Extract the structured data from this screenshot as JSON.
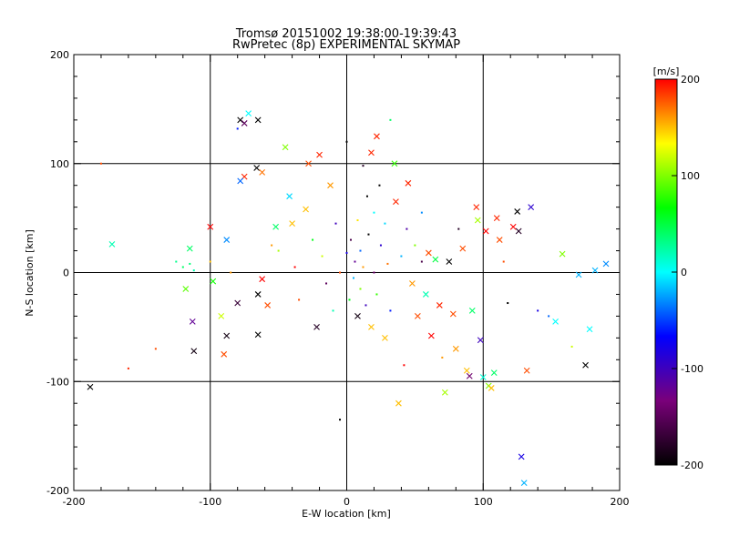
{
  "chart_data": {
    "type": "scatter",
    "title": "Tromsø 20151002 19:38:00-19:39:43",
    "subtitle": "RwPretec (8p) EXPERIMENTAL SKYMAP",
    "xlabel": "E-W location [km]",
    "ylabel": "N-S location [km]",
    "xlim": [
      -200,
      200
    ],
    "ylim": [
      -200,
      200
    ],
    "xticks": [
      "-200",
      "-100",
      "0",
      "100",
      "200"
    ],
    "yticks": [
      "-200",
      "-100",
      "0",
      "100",
      "200"
    ],
    "grid": true,
    "colorbar": {
      "label": "[m/s]",
      "range": [
        -200,
        200
      ],
      "ticks": [
        "-200",
        "-100",
        "0",
        "100",
        "200"
      ],
      "colormap": [
        "#000000",
        "#7a007a",
        "#0000ff",
        "#00ffff",
        "#00ff00",
        "#ffff00",
        "#ff0000"
      ],
      "placement": "right"
    },
    "marker_legend": {
      "small_dot": "small dots (dense cluster near origin)",
      "cross": "x markers"
    },
    "points": [
      {
        "x": -180,
        "y": 100,
        "v": 180,
        "m": "."
      },
      {
        "x": -172,
        "y": 26,
        "v": 20,
        "m": "x"
      },
      {
        "x": -188,
        "y": -105,
        "v": -200,
        "m": "x"
      },
      {
        "x": -160,
        "y": -88,
        "v": 190,
        "m": "."
      },
      {
        "x": -140,
        "y": -70,
        "v": 180,
        "m": "."
      },
      {
        "x": -125,
        "y": 10,
        "v": 30,
        "m": "."
      },
      {
        "x": -120,
        "y": 5,
        "v": 40,
        "m": "."
      },
      {
        "x": -115,
        "y": 8,
        "v": 35,
        "m": "."
      },
      {
        "x": -112,
        "y": 2,
        "v": 20,
        "m": "."
      },
      {
        "x": -118,
        "y": -15,
        "v": 90,
        "m": "x"
      },
      {
        "x": -113,
        "y": -45,
        "v": -120,
        "m": "x"
      },
      {
        "x": -112,
        "y": -72,
        "v": -190,
        "m": "x"
      },
      {
        "x": -115,
        "y": 22,
        "v": 40,
        "m": "x"
      },
      {
        "x": -100,
        "y": 42,
        "v": 200,
        "m": "x"
      },
      {
        "x": -100,
        "y": 10,
        "v": 150,
        "m": "."
      },
      {
        "x": -98,
        "y": -8,
        "v": 70,
        "m": "x"
      },
      {
        "x": -92,
        "y": -40,
        "v": 120,
        "m": "x"
      },
      {
        "x": -90,
        "y": -75,
        "v": 180,
        "m": "x"
      },
      {
        "x": -88,
        "y": -58,
        "v": -190,
        "m": "x"
      },
      {
        "x": -88,
        "y": 30,
        "v": -30,
        "m": "x"
      },
      {
        "x": -85,
        "y": 0,
        "v": 160,
        "m": "."
      },
      {
        "x": -80,
        "y": -28,
        "v": -170,
        "m": "x"
      },
      {
        "x": -78,
        "y": 140,
        "v": -200,
        "m": "x"
      },
      {
        "x": -75,
        "y": 137,
        "v": -150,
        "m": "x"
      },
      {
        "x": -80,
        "y": 132,
        "v": -60,
        "m": "."
      },
      {
        "x": -72,
        "y": 146,
        "v": 0,
        "m": "x"
      },
      {
        "x": -75,
        "y": 88,
        "v": 190,
        "m": "x"
      },
      {
        "x": -78,
        "y": 84,
        "v": -40,
        "m": "x"
      },
      {
        "x": -65,
        "y": 140,
        "v": -200,
        "m": "x"
      },
      {
        "x": -66,
        "y": 96,
        "v": -200,
        "m": "x"
      },
      {
        "x": -62,
        "y": 92,
        "v": 170,
        "m": "x"
      },
      {
        "x": -62,
        "y": -6,
        "v": 200,
        "m": "x"
      },
      {
        "x": -65,
        "y": -20,
        "v": -200,
        "m": "x"
      },
      {
        "x": -65,
        "y": -57,
        "v": -200,
        "m": "x"
      },
      {
        "x": -58,
        "y": -30,
        "v": 180,
        "m": "x"
      },
      {
        "x": -55,
        "y": 25,
        "v": 160,
        "m": "."
      },
      {
        "x": -52,
        "y": 42,
        "v": 40,
        "m": "x"
      },
      {
        "x": -50,
        "y": 20,
        "v": 110,
        "m": "."
      },
      {
        "x": -45,
        "y": 115,
        "v": 100,
        "m": "x"
      },
      {
        "x": -42,
        "y": 70,
        "v": -10,
        "m": "x"
      },
      {
        "x": -40,
        "y": 45,
        "v": 150,
        "m": "x"
      },
      {
        "x": -38,
        "y": 5,
        "v": 200,
        "m": "."
      },
      {
        "x": -35,
        "y": -25,
        "v": 180,
        "m": "."
      },
      {
        "x": -30,
        "y": 58,
        "v": 150,
        "m": "x"
      },
      {
        "x": -28,
        "y": 100,
        "v": 180,
        "m": "x"
      },
      {
        "x": -25,
        "y": 30,
        "v": 60,
        "m": "."
      },
      {
        "x": -22,
        "y": -50,
        "v": -180,
        "m": "x"
      },
      {
        "x": -20,
        "y": 108,
        "v": 190,
        "m": "x"
      },
      {
        "x": -18,
        "y": 15,
        "v": 120,
        "m": "."
      },
      {
        "x": -15,
        "y": -10,
        "v": -150,
        "m": "."
      },
      {
        "x": -12,
        "y": 80,
        "v": 160,
        "m": "x"
      },
      {
        "x": -10,
        "y": -35,
        "v": 20,
        "m": "."
      },
      {
        "x": -8,
        "y": 45,
        "v": -100,
        "m": "."
      },
      {
        "x": -5,
        "y": 0,
        "v": 180,
        "m": "."
      },
      {
        "x": -5,
        "y": -135,
        "v": -200,
        "m": "."
      },
      {
        "x": 0,
        "y": 120,
        "v": -200,
        "m": "."
      },
      {
        "x": 0,
        "y": 18,
        "v": -80,
        "m": "."
      },
      {
        "x": 2,
        "y": -25,
        "v": 60,
        "m": "."
      },
      {
        "x": 3,
        "y": 30,
        "v": -160,
        "m": "."
      },
      {
        "x": 5,
        "y": -5,
        "v": -20,
        "m": "."
      },
      {
        "x": 6,
        "y": 10,
        "v": -120,
        "m": "."
      },
      {
        "x": 8,
        "y": -40,
        "v": -190,
        "m": "x"
      },
      {
        "x": 8,
        "y": 48,
        "v": 140,
        "m": "."
      },
      {
        "x": 10,
        "y": 20,
        "v": -40,
        "m": "."
      },
      {
        "x": 10,
        "y": -15,
        "v": 100,
        "m": "."
      },
      {
        "x": 12,
        "y": 98,
        "v": -180,
        "m": "."
      },
      {
        "x": 12,
        "y": 5,
        "v": 160,
        "m": "."
      },
      {
        "x": 14,
        "y": -30,
        "v": -100,
        "m": "."
      },
      {
        "x": 15,
        "y": 70,
        "v": -200,
        "m": "."
      },
      {
        "x": 16,
        "y": 35,
        "v": -200,
        "m": "."
      },
      {
        "x": 18,
        "y": 110,
        "v": 190,
        "m": "x"
      },
      {
        "x": 18,
        "y": -50,
        "v": 150,
        "m": "x"
      },
      {
        "x": 20,
        "y": 0,
        "v": -140,
        "m": "."
      },
      {
        "x": 20,
        "y": 55,
        "v": 0,
        "m": "."
      },
      {
        "x": 22,
        "y": -20,
        "v": 80,
        "m": "."
      },
      {
        "x": 22,
        "y": 125,
        "v": 190,
        "m": "x"
      },
      {
        "x": 24,
        "y": 80,
        "v": -200,
        "m": "."
      },
      {
        "x": 25,
        "y": 25,
        "v": -90,
        "m": "."
      },
      {
        "x": 28,
        "y": -60,
        "v": 150,
        "m": "x"
      },
      {
        "x": 28,
        "y": 45,
        "v": -10,
        "m": "."
      },
      {
        "x": 30,
        "y": 8,
        "v": 170,
        "m": "."
      },
      {
        "x": 32,
        "y": -35,
        "v": -60,
        "m": "."
      },
      {
        "x": 32,
        "y": 140,
        "v": 40,
        "m": "."
      },
      {
        "x": 35,
        "y": 100,
        "v": 80,
        "m": "x"
      },
      {
        "x": 36,
        "y": 65,
        "v": 190,
        "m": "x"
      },
      {
        "x": 38,
        "y": -120,
        "v": 150,
        "m": "x"
      },
      {
        "x": 40,
        "y": 15,
        "v": -20,
        "m": "."
      },
      {
        "x": 42,
        "y": -85,
        "v": 200,
        "m": "."
      },
      {
        "x": 44,
        "y": 40,
        "v": -110,
        "m": "."
      },
      {
        "x": 45,
        "y": 82,
        "v": 190,
        "m": "x"
      },
      {
        "x": 48,
        "y": -10,
        "v": 160,
        "m": "x"
      },
      {
        "x": 50,
        "y": 25,
        "v": 100,
        "m": "."
      },
      {
        "x": 52,
        "y": -40,
        "v": 180,
        "m": "x"
      },
      {
        "x": 55,
        "y": 10,
        "v": -160,
        "m": "."
      },
      {
        "x": 55,
        "y": 55,
        "v": -30,
        "m": "."
      },
      {
        "x": 58,
        "y": -20,
        "v": 20,
        "m": "x"
      },
      {
        "x": 60,
        "y": 18,
        "v": 180,
        "m": "x"
      },
      {
        "x": 62,
        "y": -58,
        "v": 200,
        "m": "x"
      },
      {
        "x": 65,
        "y": 12,
        "v": 50,
        "m": "x"
      },
      {
        "x": 68,
        "y": -30,
        "v": 190,
        "m": "x"
      },
      {
        "x": 70,
        "y": -78,
        "v": 160,
        "m": "."
      },
      {
        "x": 72,
        "y": -110,
        "v": 110,
        "m": "x"
      },
      {
        "x": 75,
        "y": 10,
        "v": -200,
        "m": "x"
      },
      {
        "x": 78,
        "y": -38,
        "v": 180,
        "m": "x"
      },
      {
        "x": 80,
        "y": -70,
        "v": 160,
        "m": "x"
      },
      {
        "x": 82,
        "y": 40,
        "v": -180,
        "m": "."
      },
      {
        "x": 85,
        "y": 22,
        "v": 180,
        "m": "x"
      },
      {
        "x": 88,
        "y": -90,
        "v": 150,
        "m": "x"
      },
      {
        "x": 90,
        "y": -95,
        "v": -140,
        "m": "x"
      },
      {
        "x": 92,
        "y": -35,
        "v": 40,
        "m": "x"
      },
      {
        "x": 95,
        "y": 60,
        "v": 190,
        "m": "x"
      },
      {
        "x": 96,
        "y": 48,
        "v": 110,
        "m": "x"
      },
      {
        "x": 98,
        "y": -62,
        "v": -100,
        "m": "x"
      },
      {
        "x": 100,
        "y": -96,
        "v": 10,
        "m": "x"
      },
      {
        "x": 102,
        "y": 38,
        "v": 200,
        "m": "x"
      },
      {
        "x": 104,
        "y": -104,
        "v": 100,
        "m": "x"
      },
      {
        "x": 106,
        "y": -106,
        "v": 150,
        "m": "x"
      },
      {
        "x": 108,
        "y": -92,
        "v": 40,
        "m": "x"
      },
      {
        "x": 110,
        "y": 50,
        "v": 190,
        "m": "x"
      },
      {
        "x": 112,
        "y": 30,
        "v": 180,
        "m": "x"
      },
      {
        "x": 115,
        "y": 10,
        "v": 180,
        "m": "."
      },
      {
        "x": 118,
        "y": -28,
        "v": -200,
        "m": "."
      },
      {
        "x": 122,
        "y": 42,
        "v": 200,
        "m": "x"
      },
      {
        "x": 125,
        "y": 56,
        "v": -200,
        "m": "x"
      },
      {
        "x": 126,
        "y": 38,
        "v": -180,
        "m": "x"
      },
      {
        "x": 128,
        "y": -169,
        "v": -80,
        "m": "x"
      },
      {
        "x": 130,
        "y": -193,
        "v": -20,
        "m": "x"
      },
      {
        "x": 132,
        "y": -90,
        "v": 180,
        "m": "x"
      },
      {
        "x": 135,
        "y": 60,
        "v": -90,
        "m": "x"
      },
      {
        "x": 140,
        "y": -35,
        "v": -80,
        "m": "."
      },
      {
        "x": 148,
        "y": -40,
        "v": -40,
        "m": "."
      },
      {
        "x": 153,
        "y": -45,
        "v": 0,
        "m": "x"
      },
      {
        "x": 158,
        "y": 17,
        "v": 100,
        "m": "x"
      },
      {
        "x": 165,
        "y": -68,
        "v": 120,
        "m": "."
      },
      {
        "x": 170,
        "y": -2,
        "v": -20,
        "m": "x"
      },
      {
        "x": 175,
        "y": -85,
        "v": -200,
        "m": "x"
      },
      {
        "x": 178,
        "y": -52,
        "v": 0,
        "m": "x"
      },
      {
        "x": 182,
        "y": 2,
        "v": -20,
        "m": "x"
      },
      {
        "x": 190,
        "y": 8,
        "v": -30,
        "m": "x"
      }
    ]
  }
}
